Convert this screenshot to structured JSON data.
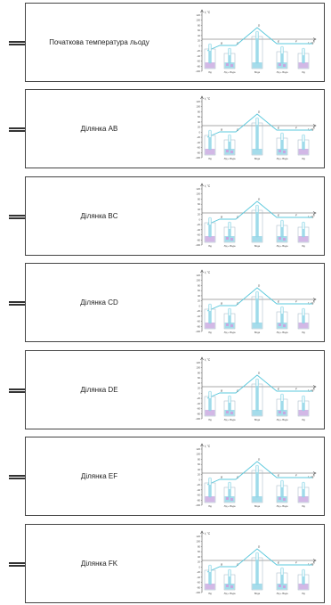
{
  "rows": [
    {
      "label": "Початкова температура льоду"
    },
    {
      "label": "Ділянка AB"
    },
    {
      "label": "Ділянка BC"
    },
    {
      "label": "Ділянка CD"
    },
    {
      "label": "Ділянка DE"
    },
    {
      "label": "Ділянка EF"
    },
    {
      "label": "Ділянка FK"
    }
  ],
  "graph": {
    "y_axis_label": "t, °C",
    "x_axis_label": "τ, хв",
    "y_ticks": [
      "120",
      "100",
      "80",
      "60",
      "40",
      "20",
      "0",
      "-20",
      "-40",
      "-60",
      "-80",
      "-100"
    ],
    "points": [
      "A",
      "B",
      "C",
      "D",
      "E",
      "F",
      "K"
    ],
    "vessel_labels": [
      "Лід",
      "Лід + Вода",
      "Вода",
      "Лід + Вода",
      "Лід"
    ],
    "colors": {
      "line": "#5bc8dc",
      "liquid": "#8fd3e6",
      "ice": "#c7a6e0",
      "vessel": "#9fb6c4"
    }
  }
}
